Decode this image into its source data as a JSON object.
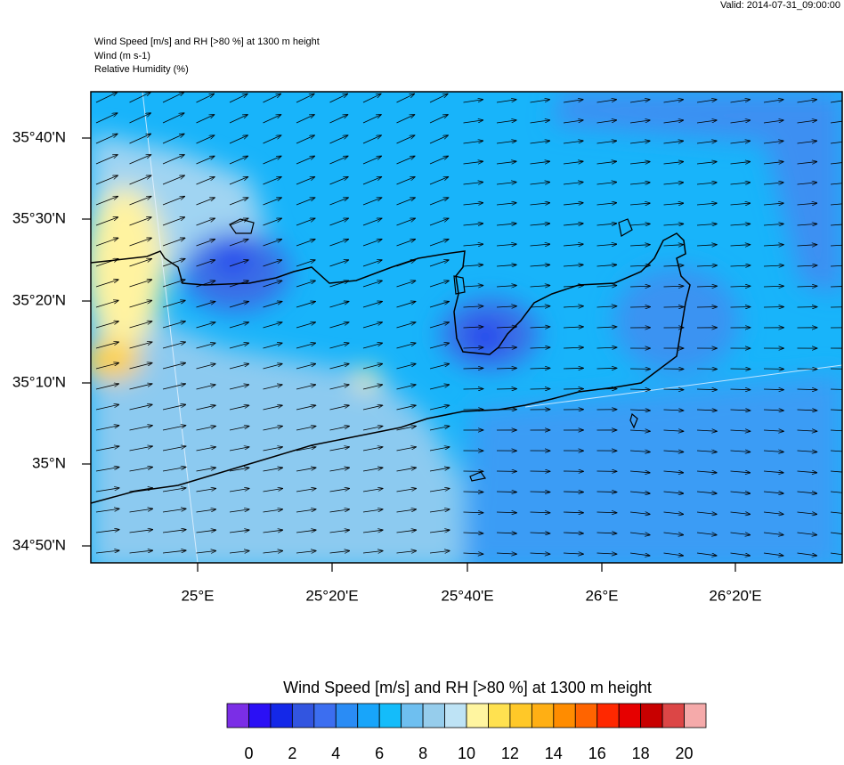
{
  "header": {
    "valid": "Valid: 2014-07-31_09:00:00",
    "titles": [
      "Wind Speed [m/s] and RH [>80 %] at 1300 m height",
      "Wind   (m s-1)",
      "Relative Humidity   (%)"
    ]
  },
  "map": {
    "lat_labels": [
      "35°40'N",
      "35°30'N",
      "35°20'N",
      "35°10'N",
      "35°N",
      "34°50'N"
    ],
    "lon_labels": [
      "25°E",
      "25°20'E",
      "25°40'E",
      "26°E",
      "26°20'E"
    ]
  },
  "colorbar": {
    "title": "Wind Speed [m/s] and RH [>80 %] at 1300 m height",
    "lim": [
      -1,
      21
    ],
    "colors": [
      "#7b2ee6",
      "#2b10f5",
      "#1428e8",
      "#3255e0",
      "#3c6ef0",
      "#2a8cf5",
      "#18a5fa",
      "#14bcfa",
      "#6ebff0",
      "#96cdec",
      "#bee3f5",
      "#fff5a0",
      "#ffe150",
      "#ffc828",
      "#ffaf14",
      "#ff8c00",
      "#ff6400",
      "#ff2800",
      "#e60000",
      "#c80000",
      "#dc4646",
      "#f5aaaa"
    ],
    "ticks": [
      0,
      2,
      4,
      6,
      8,
      10,
      12,
      14,
      16,
      18,
      20
    ]
  }
}
